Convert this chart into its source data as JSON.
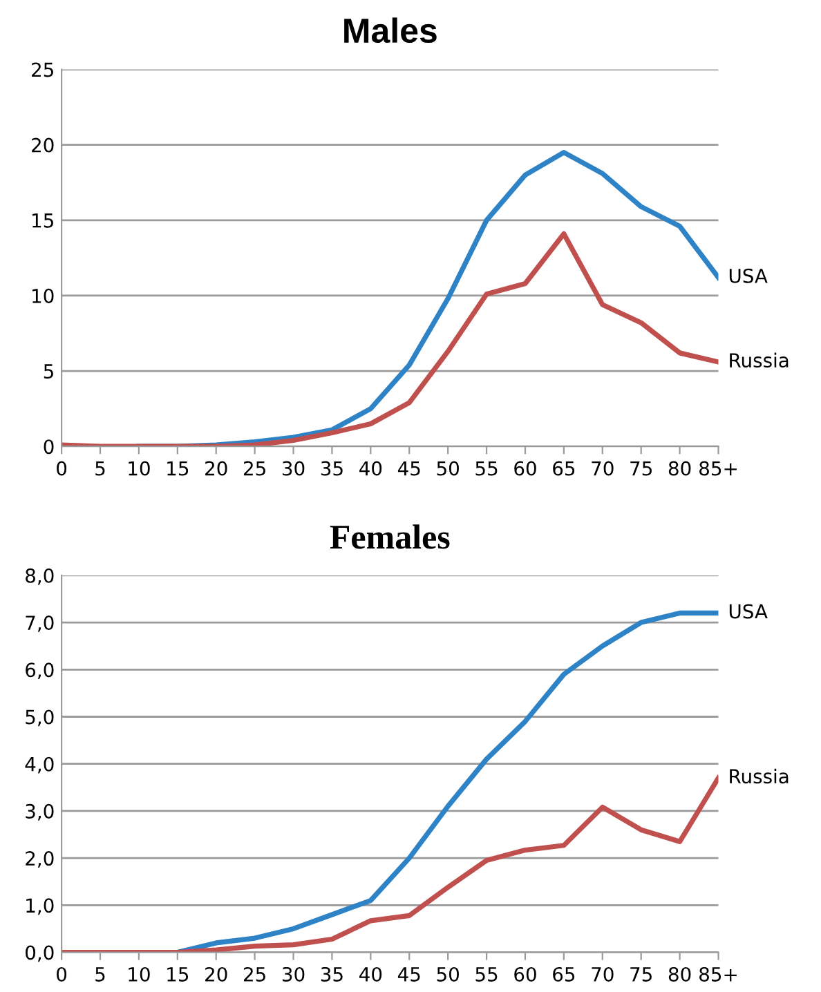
{
  "chart_data": [
    {
      "type": "line",
      "title": "Males",
      "categories": [
        "0",
        "5",
        "10",
        "15",
        "20",
        "25",
        "30",
        "35",
        "40",
        "45",
        "50",
        "55",
        "60",
        "65",
        "70",
        "75",
        "80",
        "85+"
      ],
      "series": [
        {
          "name": "USA",
          "color": "#2e83c6",
          "values": [
            null,
            null,
            0,
            0,
            0.1,
            0.3,
            0.6,
            1.1,
            2.5,
            5.4,
            9.8,
            15,
            18,
            19.5,
            18.1,
            15.9,
            14.6,
            11.2
          ]
        },
        {
          "name": "Russia",
          "color": "#c0504d",
          "values": [
            0.1,
            0,
            0,
            0,
            0,
            0.1,
            0.4,
            0.9,
            1.5,
            2.9,
            6.3,
            10.1,
            10.8,
            14.1,
            9.4,
            8.2,
            6.2,
            5.6
          ]
        }
      ],
      "ylim": [
        0,
        25
      ],
      "yticks": [
        0,
        5,
        10,
        15,
        20,
        25
      ],
      "grid": "y",
      "legend": false,
      "marker": "none",
      "line_style": "solid"
    },
    {
      "type": "line",
      "title": "Females",
      "categories": [
        "0",
        "5",
        "10",
        "15",
        "20",
        "25",
        "30",
        "35",
        "40",
        "45",
        "50",
        "55",
        "60",
        "65",
        "70",
        "75",
        "80",
        "85+"
      ],
      "series": [
        {
          "name": "USA",
          "color": "#2e83c6",
          "values": [
            null,
            null,
            0,
            0,
            0.2,
            0.3,
            0.5,
            0.8,
            1.1,
            2.0,
            3.1,
            4.1,
            4.9,
            5.9,
            6.5,
            7.0,
            7.2,
            7.2
          ]
        },
        {
          "name": "Russia",
          "color": "#c0504d",
          "values": [
            0,
            0,
            0,
            0,
            0.05,
            0.13,
            0.16,
            0.28,
            0.67,
            0.78,
            1.38,
            1.95,
            2.17,
            2.27,
            3.08,
            2.6,
            2.35,
            3.7
          ]
        }
      ],
      "ylim": [
        0,
        8
      ],
      "yticks": [
        {
          "value": 0,
          "label": "0,0"
        },
        {
          "value": 1,
          "label": "1,0"
        },
        {
          "value": 2,
          "label": "2,0"
        },
        {
          "value": 3,
          "label": "3,0"
        },
        {
          "value": 4,
          "label": "4,0"
        },
        {
          "value": 5,
          "label": "5,0"
        },
        {
          "value": 6,
          "label": "6,0"
        },
        {
          "value": 7,
          "label": "7,0"
        },
        {
          "value": 8,
          "label": "8,0"
        }
      ],
      "grid": "y",
      "legend": false,
      "marker": "none",
      "line_style": "solid"
    }
  ]
}
